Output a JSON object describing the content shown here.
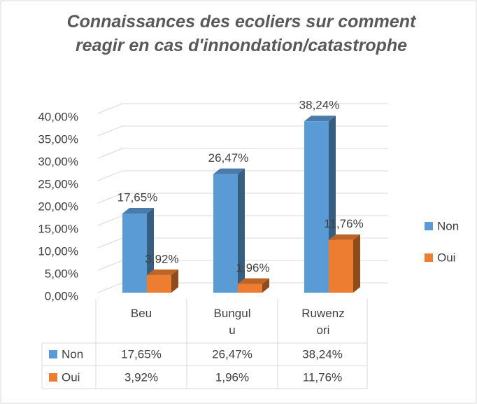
{
  "chart_data": {
    "type": "bar3d",
    "title": "Connaissances des ecoliers sur comment reagir en cas d'innondation/catastrophe",
    "categories": [
      "Beu",
      "Bungulu",
      "Ruwenzori"
    ],
    "series": [
      {
        "name": "Non",
        "color": "#5b9bd5",
        "values": [
          17.65,
          26.47,
          38.24
        ],
        "value_labels": [
          "17,65%",
          "26,47%",
          "38,24%"
        ]
      },
      {
        "name": "Oui",
        "color": "#ed7d31",
        "values": [
          3.92,
          1.96,
          11.76
        ],
        "value_labels": [
          "3,92%",
          "1,96%",
          "11,76%"
        ]
      }
    ],
    "ylim": [
      0,
      40
    ],
    "yticks": [
      {
        "value": 0,
        "label": "0,00%"
      },
      {
        "value": 5,
        "label": "5,00%"
      },
      {
        "value": 10,
        "label": "10,00%"
      },
      {
        "value": 15,
        "label": "15,00%"
      },
      {
        "value": 20,
        "label": "20,00%"
      },
      {
        "value": 25,
        "label": "25,00%"
      },
      {
        "value": 30,
        "label": "30,00%"
      },
      {
        "value": 35,
        "label": "35,00%"
      },
      {
        "value": 40,
        "label": "40,00%"
      }
    ],
    "grid": true,
    "legend": "right"
  }
}
